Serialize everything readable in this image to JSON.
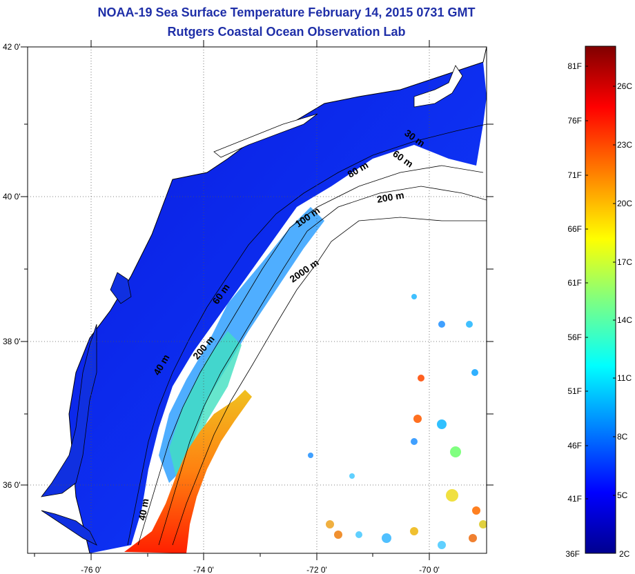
{
  "header": {
    "title_line1": "NOAA-19 Sea Surface Temperature February 14, 2015 0731 GMT",
    "title_line2": "Rutgers Coastal Ocean Observation Lab"
  },
  "map": {
    "lon_labels": [
      "-76 0'",
      "-74 0'",
      "-72 0'",
      "-70 0'"
    ],
    "lat_labels": [
      "42 0'",
      "40 0'",
      "38 0'",
      "36 0'"
    ],
    "contour_labels": [
      "30 m",
      "60 m",
      "80 m",
      "200 m",
      "100 m",
      "2000 m",
      "60 m",
      "200 m",
      "40 m",
      "40 m"
    ]
  },
  "colorbar": {
    "fahrenheit_labels": [
      "81F",
      "76F",
      "71F",
      "66F",
      "61F",
      "56F",
      "51F",
      "46F",
      "41F",
      "36F"
    ],
    "celsius_labels": [
      "26C",
      "23C",
      "20C",
      "17C",
      "14C",
      "11C",
      "8C",
      "5C",
      "2C"
    ],
    "colors": [
      "#00008f",
      "#0000ff",
      "#0080ff",
      "#00ffff",
      "#80ff80",
      "#ffff00",
      "#ff8000",
      "#ff0000",
      "#800000"
    ]
  }
}
